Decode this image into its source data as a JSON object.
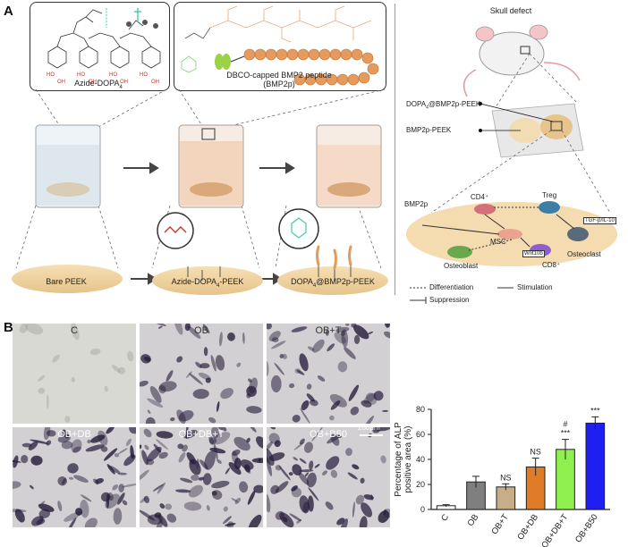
{
  "panel_a": {
    "letter": "A",
    "azide_label": "Azide-DOPA",
    "azide_sub": "4",
    "dbco_label_line1": "DBCO-capped BMP2 peptide",
    "dbco_label_line2": "(BMP2p)",
    "bare_peek": "Bare PEEK",
    "azide_peek": "Azide-DOPA",
    "azide_peek_sub": "4",
    "azide_peek_tail": "-PEEK",
    "final_peek": "DOPA",
    "final_peek_sub": "4",
    "final_peek_tail": "@BMP2p-PEEK",
    "skull_defect": "Skull defect",
    "implant_label_1": "DOPA",
    "implant_label_1_sub": "4",
    "implant_label_1_tail": "@BMP2p-PEEK",
    "implant_label_2": "BMP2p-PEEK",
    "cells": {
      "bmp2p": "BMP2p",
      "cd4": "CD4⁺",
      "treg": "Treg",
      "tgf": "TGF-β/IL-10",
      "msc": "MSC",
      "wnt": "Wnt10b",
      "osteoclast": "Osteoclast",
      "osteoblast": "Osteoblast",
      "cd8": "CD8⁺"
    },
    "legend": {
      "differentiation": "Differentiation",
      "stimulation": "Stimulation",
      "suppression": "Suppression"
    }
  },
  "panel_b": {
    "letter": "B",
    "photos": [
      {
        "label": "C"
      },
      {
        "label": "OB"
      },
      {
        "label": "OB+T"
      },
      {
        "label": "OB+DB"
      },
      {
        "label": "OB+DB+T"
      },
      {
        "label": "OB+B50"
      }
    ],
    "scalebar": "200μm"
  },
  "chart_data": {
    "type": "bar",
    "categories": [
      "C",
      "OB",
      "OB+T",
      "OB+DB",
      "OB+DB+T",
      "OB+B50"
    ],
    "values": [
      3,
      22,
      18,
      34,
      48,
      69
    ],
    "errors": [
      0.8,
      4.5,
      2.5,
      7,
      8,
      5
    ],
    "significance": [
      "",
      "",
      "NS",
      "NS",
      "#\n***",
      "***"
    ],
    "colors": [
      "#ffffff",
      "#7f7f7f",
      "#c8ad8a",
      "#e07b27",
      "#8ff04f",
      "#1f1ff2"
    ],
    "ylabel": "Percentage of ALP positive area (%)",
    "ylim": [
      0,
      80
    ],
    "yticks": [
      0,
      20,
      40,
      60,
      80
    ]
  }
}
